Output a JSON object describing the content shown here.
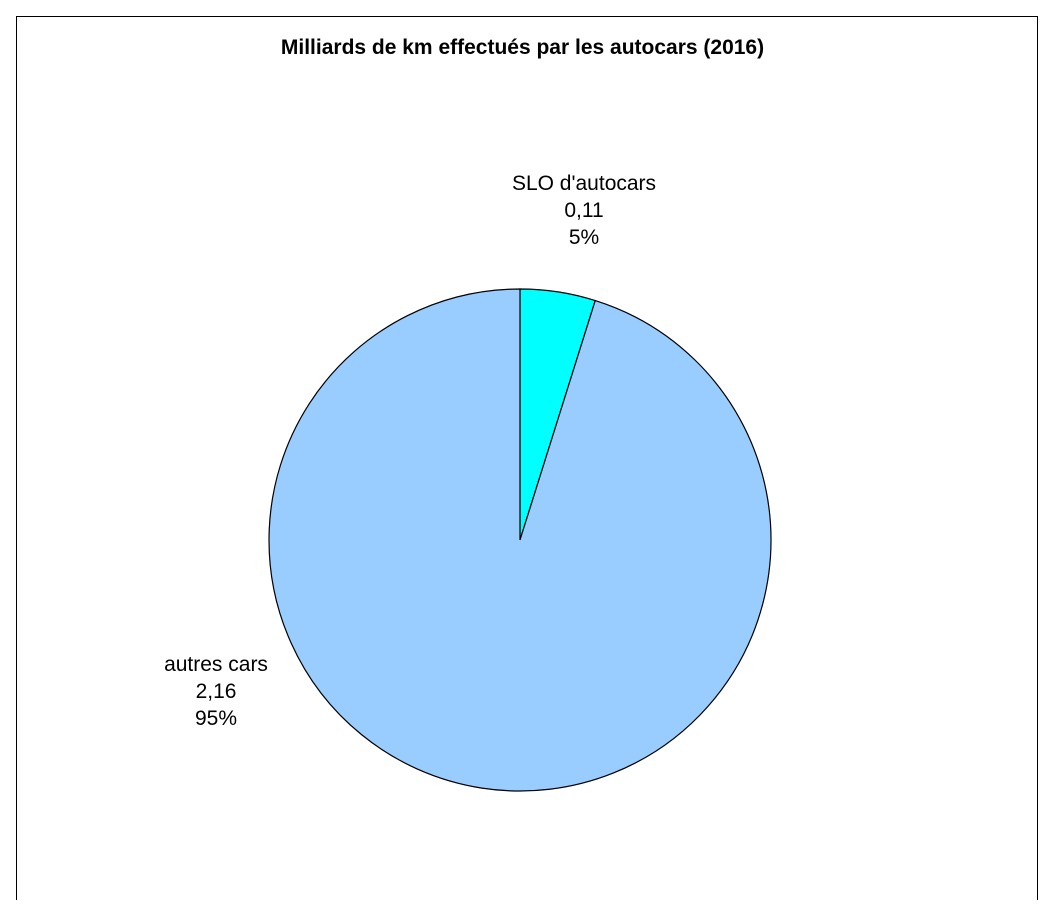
{
  "chart_data": {
    "type": "pie",
    "title": "Milliards de km effectués par les autocars (2016)",
    "slices": [
      {
        "label": "SLO d'autocars",
        "value": 0.11,
        "value_text": "0,11",
        "percent": 5,
        "percent_text": "5%",
        "color": "#00FFFF"
      },
      {
        "label": "autres cars",
        "value": 2.16,
        "value_text": "2,16",
        "percent": 95,
        "percent_text": "95%",
        "color": "#99CCFF"
      }
    ],
    "legend": "none"
  }
}
